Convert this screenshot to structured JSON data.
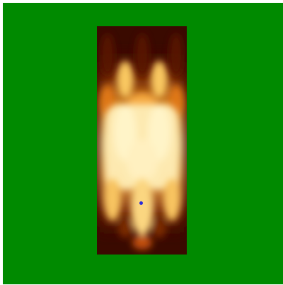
{
  "scene": {
    "background_color": "#008a00",
    "heatmap_colormap": "afmhot",
    "heatmap_dark_color": "#3a0a00",
    "heatmap_mid_color": "#d9700a",
    "heatmap_bright_color": "#fff0b0",
    "marker_color": "#2a2ad8"
  }
}
